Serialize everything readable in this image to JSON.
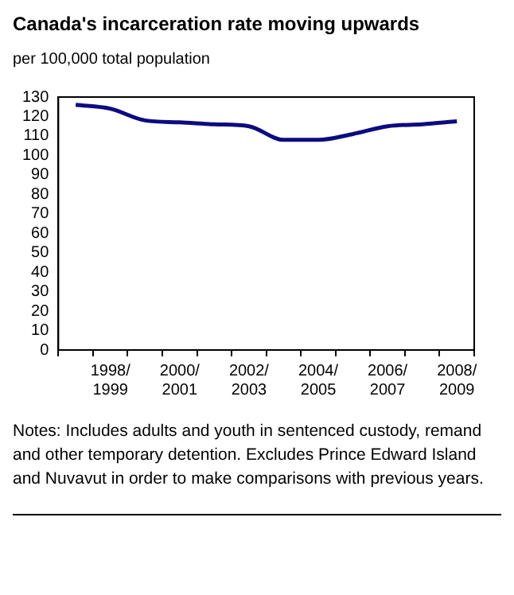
{
  "chart_data": {
    "type": "line",
    "title": "Canada's incarceration rate moving upwards",
    "ylabel": "per 100,000 total population",
    "categories": [
      null,
      "1998/\n1999",
      null,
      "2000/\n2001",
      null,
      "2002/\n2003",
      null,
      "2004/\n2005",
      null,
      "2006/\n2007",
      null,
      "2008/\n2009"
    ],
    "series": [
      {
        "color": "#0c0c80",
        "values": [
          126,
          124,
          118,
          117,
          116,
          115,
          108,
          108,
          111,
          115,
          116,
          117.5
        ]
      }
    ],
    "ylim": [
      0,
      130
    ],
    "yticks": [
      0,
      10,
      20,
      30,
      40,
      50,
      60,
      70,
      80,
      90,
      100,
      110,
      120,
      130
    ],
    "grid": false,
    "legend": false,
    "marker": "none",
    "line_style": "solid",
    "annotations": [
      "Notes:  Includes adults and youth in sentenced custody, remand and other temporary detention. Excludes Prince Edward Island and Nuvavut in order to make comparisons with previous years."
    ]
  }
}
